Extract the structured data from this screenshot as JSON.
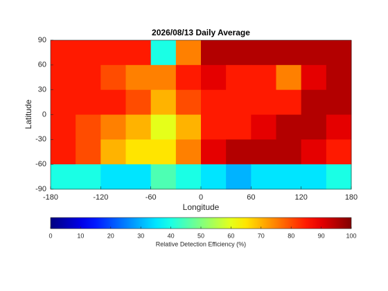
{
  "chart_data": {
    "type": "heatmap",
    "title": "2026/08/13 Daily Average",
    "xlabel": "Longitude",
    "ylabel": "Latitude",
    "x": [
      -180,
      -150,
      -120,
      -90,
      -60,
      -30,
      0,
      30,
      60,
      90,
      120,
      150,
      180
    ],
    "y": [
      90,
      60,
      30,
      0,
      -30,
      -60,
      -90
    ],
    "z": [
      [
        85,
        85,
        85,
        85,
        40,
        75,
        95,
        95,
        95,
        95,
        95,
        95
      ],
      [
        85,
        85,
        80,
        75,
        75,
        85,
        90,
        85,
        85,
        75,
        90,
        95
      ],
      [
        85,
        85,
        85,
        80,
        70,
        80,
        85,
        85,
        85,
        85,
        95,
        95
      ],
      [
        85,
        80,
        75,
        70,
        60,
        70,
        85,
        85,
        90,
        95,
        95,
        90
      ],
      [
        85,
        80,
        70,
        65,
        65,
        75,
        90,
        95,
        95,
        95,
        90,
        85
      ],
      [
        40,
        40,
        35,
        35,
        45,
        40,
        35,
        30,
        35,
        35,
        35,
        40
      ]
    ],
    "xlim": [
      -180,
      180
    ],
    "ylim": [
      -90,
      90
    ],
    "xticks": [
      -180,
      -120,
      -60,
      0,
      60,
      120,
      180
    ],
    "yticks": [
      -90,
      -60,
      -30,
      0,
      30,
      60,
      90
    ],
    "colormap": "jet",
    "colorbar": {
      "label": "Relative Detection Efficiency (%)",
      "clim": [
        0,
        100
      ],
      "ticks": [
        0,
        10,
        20,
        30,
        40,
        50,
        60,
        70,
        80,
        90,
        100
      ]
    }
  }
}
